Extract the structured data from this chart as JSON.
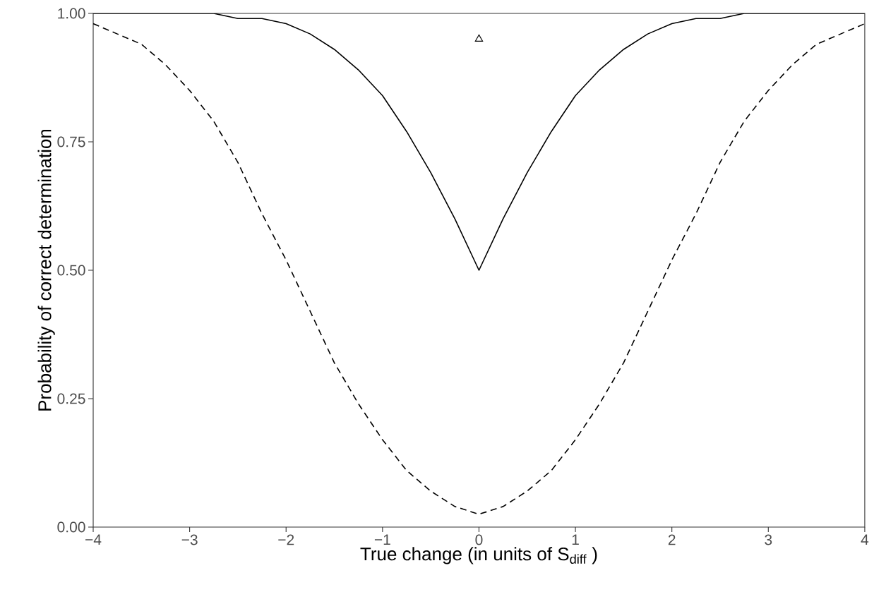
{
  "chart_data": {
    "type": "line",
    "xlabel": "True change (in units of S$_{diff}$ )",
    "ylabel": "Probability of correct determination",
    "xlim": [
      -4,
      4
    ],
    "ylim": [
      0,
      1
    ],
    "xticks": [
      {
        "value": -4,
        "label": "−4"
      },
      {
        "value": -3,
        "label": "−3"
      },
      {
        "value": -2,
        "label": "−2"
      },
      {
        "value": -1,
        "label": "−1"
      },
      0,
      1,
      2,
      3,
      4
    ],
    "yticks": [
      {
        "value": 0,
        "label": "0.00"
      },
      {
        "value": 0.25,
        "label": "0.25"
      },
      {
        "value": 0.5,
        "label": "0.50"
      },
      {
        "value": 0.75,
        "label": "0.75"
      },
      {
        "value": 1,
        "label": "1.00"
      }
    ],
    "series": [
      {
        "line_style": "solid",
        "color": "#000000",
        "x": [
          -4,
          -3.75,
          -3.5,
          -3.25,
          -3,
          -2.75,
          -2.5,
          -2.25,
          -2,
          -1.75,
          -1.5,
          -1.25,
          -1,
          -0.75,
          -0.5,
          -0.25,
          0,
          0.25,
          0.5,
          0.75,
          1,
          1.25,
          1.5,
          1.75,
          2,
          2.25,
          2.5,
          2.75,
          3,
          3.25,
          3.5,
          3.75,
          4
        ],
        "values": [
          1.0,
          1.0,
          1.0,
          1.0,
          1.0,
          1.0,
          0.99,
          0.99,
          0.98,
          0.96,
          0.93,
          0.89,
          0.84,
          0.77,
          0.69,
          0.6,
          0.5,
          0.6,
          0.69,
          0.77,
          0.84,
          0.89,
          0.93,
          0.96,
          0.98,
          0.99,
          0.99,
          1.0,
          1.0,
          1.0,
          1.0,
          1.0,
          1.0
        ]
      },
      {
        "line_style": "dashed",
        "color": "#000000",
        "x": [
          -4,
          -3.75,
          -3.5,
          -3.25,
          -3,
          -2.75,
          -2.5,
          -2.25,
          -2,
          -1.75,
          -1.5,
          -1.25,
          -1,
          -0.75,
          -0.5,
          -0.25,
          0,
          0.25,
          0.5,
          0.75,
          1,
          1.25,
          1.5,
          1.75,
          2,
          2.25,
          2.5,
          2.75,
          3,
          3.25,
          3.5,
          3.75,
          4
        ],
        "values": [
          0.98,
          0.96,
          0.94,
          0.9,
          0.85,
          0.79,
          0.71,
          0.61,
          0.52,
          0.42,
          0.32,
          0.24,
          0.17,
          0.11,
          0.07,
          0.04,
          0.025,
          0.04,
          0.07,
          0.11,
          0.17,
          0.24,
          0.32,
          0.42,
          0.52,
          0.61,
          0.71,
          0.79,
          0.85,
          0.9,
          0.94,
          0.96,
          0.98
        ]
      },
      {
        "type": "scatter",
        "marker": "triangle",
        "color": "#000000",
        "x": [
          0
        ],
        "values": [
          0.95
        ]
      }
    ]
  }
}
